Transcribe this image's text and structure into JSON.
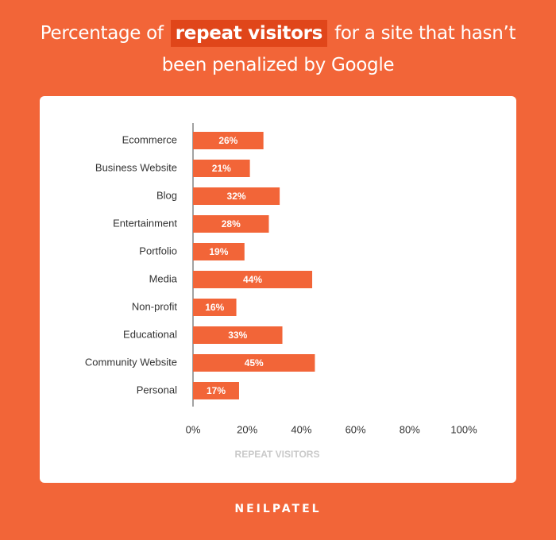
{
  "title": {
    "before": "Percentage of",
    "highlight": "repeat visitors",
    "line1_after": "for a site that hasn’t",
    "line2": "been penalized by Google"
  },
  "brand": "NEILPATEL",
  "colors": {
    "background": "#f26538",
    "bar": "#f26538",
    "highlight_bg": "#e0461a",
    "axis_label": "#c9c9c9",
    "text": "#333333"
  },
  "chart_data": {
    "type": "bar",
    "orientation": "horizontal",
    "categories": [
      "Ecommerce",
      "Business Website",
      "Blog",
      "Entertainment",
      "Portfolio",
      "Media",
      "Non-profit",
      "Educational",
      "Community Website",
      "Personal"
    ],
    "values": [
      26,
      21,
      32,
      28,
      19,
      44,
      16,
      33,
      45,
      17
    ],
    "value_labels": [
      "26%",
      "21%",
      "32%",
      "28%",
      "19%",
      "44%",
      "16%",
      "33%",
      "45%",
      "17%"
    ],
    "xlabel": "REPEAT VISITORS",
    "xlim": [
      0,
      100
    ],
    "xticks": [
      0,
      20,
      40,
      60,
      80,
      100
    ],
    "xtick_labels": [
      "0%",
      "20%",
      "40%",
      "60%",
      "80%",
      "100%"
    ],
    "grid": false
  }
}
